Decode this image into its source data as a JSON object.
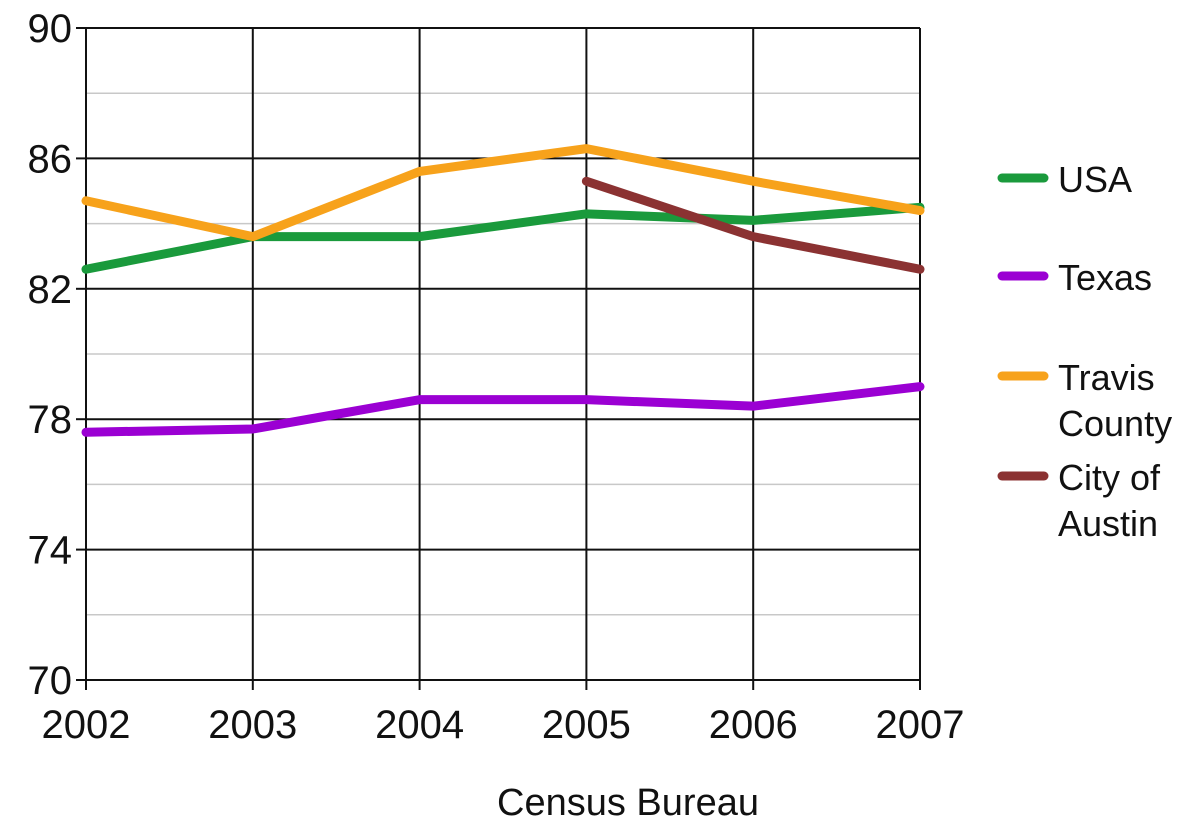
{
  "chart_data": {
    "type": "line",
    "title": "",
    "xlabel": "Census Bureau",
    "ylabel": "",
    "x": [
      "2002",
      "2003",
      "2004",
      "2005",
      "2006",
      "2007"
    ],
    "ylim": [
      70,
      90
    ],
    "yticks": [
      "70",
      "74",
      "78",
      "82",
      "86",
      "90"
    ],
    "grid": true,
    "legend": "right",
    "series": [
      {
        "name": "USA",
        "color": "#1a9a3c",
        "values": [
          82.6,
          83.6,
          83.6,
          84.3,
          84.1,
          84.5
        ]
      },
      {
        "name": "Texas",
        "color": "#9b00d3",
        "values": [
          77.6,
          77.7,
          78.6,
          78.6,
          78.4,
          79.0
        ]
      },
      {
        "name": "Travis County",
        "legend_lines": [
          "Travis",
          "County"
        ],
        "color": "#f7a21b",
        "values": [
          84.7,
          83.6,
          85.6,
          86.3,
          85.3,
          84.4
        ]
      },
      {
        "name": "City of Austin",
        "legend_lines": [
          "City of",
          "Austin"
        ],
        "color": "#8b3232",
        "values": [
          null,
          null,
          null,
          85.3,
          83.6,
          82.6
        ]
      }
    ]
  }
}
